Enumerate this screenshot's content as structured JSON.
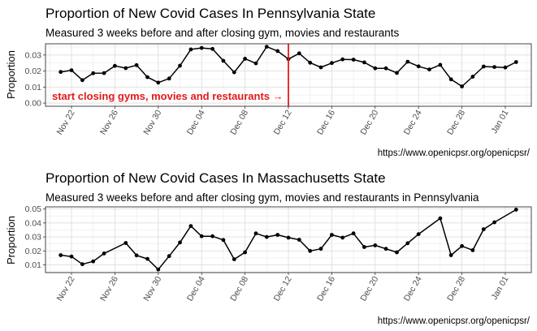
{
  "chart_data": [
    {
      "type": "line",
      "title": "Proportion of New Covid Cases In Pennsylvania State",
      "subtitle": "Measured 3 weeks before and after closing gym, movies and restaurants",
      "xlabel": "",
      "ylabel": "Proportion",
      "caption": "https://www.openicpsr.org/openicpsr/",
      "x_tick_labels": [
        "Nov 22",
        "Nov 26",
        "Nov 30",
        "Dec 04",
        "Dec 08",
        "Dec 12",
        "Dec 16",
        "Dec 20",
        "Dec 24",
        "Dec 28",
        "Jan 01"
      ],
      "y_ticks": [
        0.0,
        0.01,
        0.02,
        0.03
      ],
      "y_tick_labels": [
        "0.00",
        "0.01",
        "0.02",
        "0.03"
      ],
      "ylim": [
        -0.002,
        0.037
      ],
      "grid": true,
      "series": [
        {
          "x": [
            "2020-11-21",
            "2020-11-22",
            "2020-11-23",
            "2020-11-24",
            "2020-11-25",
            "2020-11-26",
            "2020-11-27",
            "2020-11-28",
            "2020-11-29",
            "2020-11-30",
            "2020-12-01",
            "2020-12-02",
            "2020-12-03",
            "2020-12-04",
            "2020-12-05",
            "2020-12-06",
            "2020-12-07",
            "2020-12-08",
            "2020-12-09",
            "2020-12-10",
            "2020-12-11",
            "2020-12-12",
            "2020-12-13",
            "2020-12-14",
            "2020-12-15",
            "2020-12-16",
            "2020-12-17",
            "2020-12-18",
            "2020-12-19",
            "2020-12-20",
            "2020-12-21",
            "2020-12-22",
            "2020-12-23",
            "2020-12-24",
            "2020-12-25",
            "2020-12-26",
            "2020-12-27",
            "2020-12-28",
            "2020-12-29",
            "2020-12-30",
            "2020-12-31",
            "2021-01-01",
            "2021-01-02"
          ],
          "values": [
            0.0194,
            0.0205,
            0.0143,
            0.0186,
            0.0187,
            0.0232,
            0.0218,
            0.0237,
            0.0162,
            0.0128,
            0.0153,
            0.0233,
            0.0335,
            0.0344,
            0.0338,
            0.0264,
            0.0192,
            0.0277,
            0.0248,
            0.0352,
            0.0325,
            0.0275,
            0.031,
            0.0252,
            0.0223,
            0.025,
            0.0273,
            0.0271,
            0.0254,
            0.0217,
            0.0217,
            0.0188,
            0.0258,
            0.0229,
            0.021,
            0.0239,
            0.0148,
            0.0104,
            0.0165,
            0.0228,
            0.0225,
            0.0222,
            0.0256
          ]
        }
      ],
      "vline": {
        "x": "2020-12-12",
        "color": "#e31a1c"
      },
      "annotation": {
        "text": "start closing gyms, movies and restaurants →",
        "color": "#e31a1c"
      }
    },
    {
      "type": "line",
      "title": "Proportion of New Covid Cases In Massachusetts  State",
      "subtitle": "Measured 3 weeks before and after closing gym, movies and restaurants in Pennsylvania",
      "xlabel": "",
      "ylabel": "Proportion",
      "caption": "https://www.openicpsr.org/openicpsr/",
      "x_tick_labels": [
        "Nov 22",
        "Nov 26",
        "Nov 30",
        "Dec 04",
        "Dec 08",
        "Dec 12",
        "Dec 16",
        "Dec 20",
        "Dec 24",
        "Dec 28",
        "Jan 01"
      ],
      "y_ticks": [
        0.01,
        0.02,
        0.03,
        0.04,
        0.05
      ],
      "y_tick_labels": [
        "0.01",
        "0.02",
        "0.03",
        "0.04",
        "0.05"
      ],
      "ylim": [
        0.0045,
        0.0515
      ],
      "grid": true,
      "series": [
        {
          "x": [
            "2020-11-21",
            "2020-11-22",
            "2020-11-23",
            "2020-11-24",
            "2020-11-25",
            "2020-11-27",
            "2020-11-28",
            "2020-11-29",
            "2020-11-30",
            "2020-12-01",
            "2020-12-02",
            "2020-12-03",
            "2020-12-04",
            "2020-12-05",
            "2020-12-06",
            "2020-12-07",
            "2020-12-08",
            "2020-12-09",
            "2020-12-10",
            "2020-12-11",
            "2020-12-12",
            "2020-12-13",
            "2020-12-14",
            "2020-12-15",
            "2020-12-16",
            "2020-12-17",
            "2020-12-18",
            "2020-12-19",
            "2020-12-20",
            "2020-12-21",
            "2020-12-22",
            "2020-12-23",
            "2020-12-24",
            "2020-12-26",
            "2020-12-27",
            "2020-12-28",
            "2020-12-29",
            "2020-12-30",
            "2020-12-31",
            "2021-01-02"
          ],
          "values": [
            0.017,
            0.016,
            0.0105,
            0.0125,
            0.0182,
            0.0257,
            0.0168,
            0.0143,
            0.0067,
            0.0163,
            0.026,
            0.0378,
            0.0305,
            0.0305,
            0.0278,
            0.014,
            0.019,
            0.0325,
            0.03,
            0.0315,
            0.0295,
            0.028,
            0.02,
            0.0215,
            0.0315,
            0.0295,
            0.0325,
            0.0228,
            0.024,
            0.0215,
            0.019,
            0.0255,
            0.032,
            0.0433,
            0.017,
            0.0235,
            0.0205,
            0.0355,
            0.0405,
            0.0495
          ]
        }
      ]
    }
  ]
}
